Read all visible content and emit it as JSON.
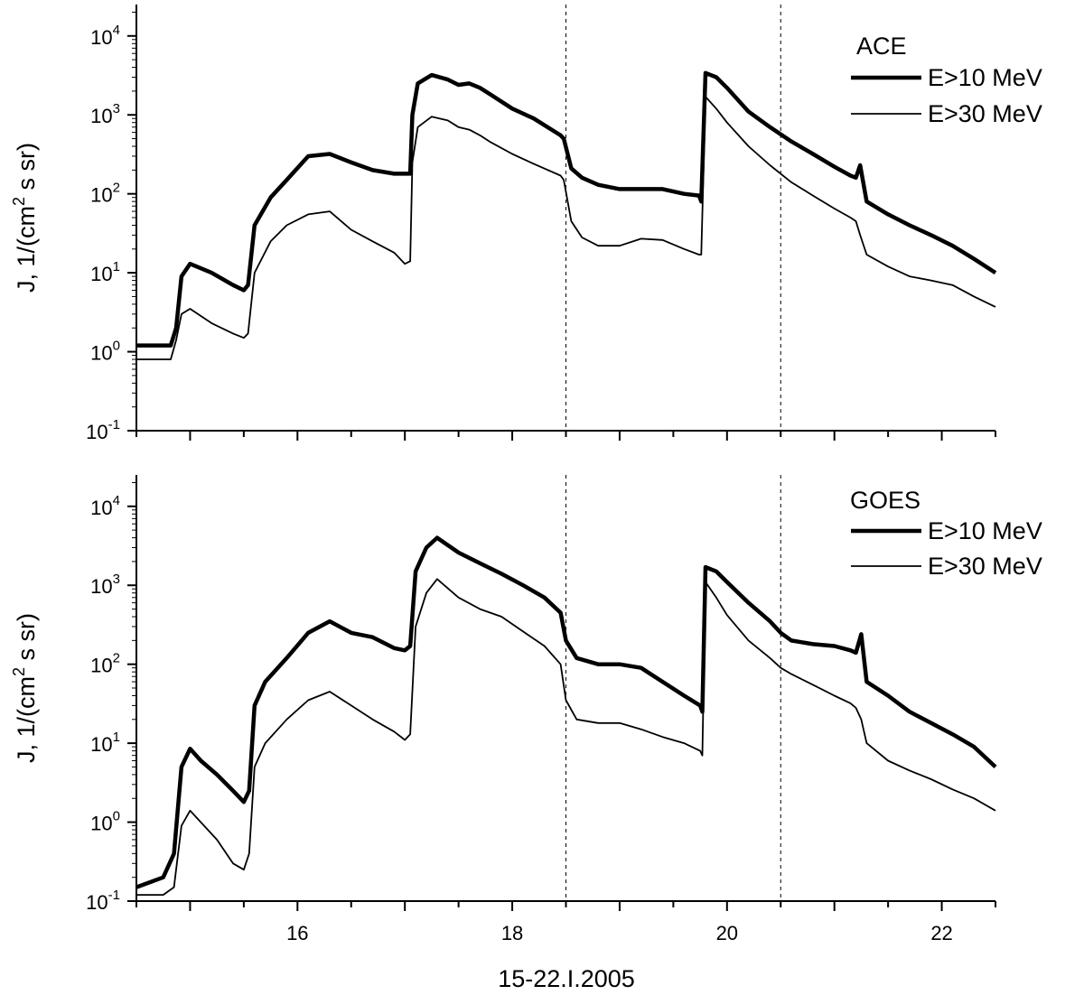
{
  "x_axis_title": "15-22.I.2005",
  "chart_data": [
    {
      "type": "line",
      "panel": "top",
      "title": "",
      "legend_title": "ACE",
      "legend_position": "top-right",
      "xlabel": "15-22.I.2005",
      "ylabel": "J, 1/(cm² s sr)",
      "ylabel_parts": {
        "pre": "J, 1/(cm",
        "sup": "2",
        "post": " s sr)"
      },
      "yscale": "log",
      "xlim": [
        14.5,
        22.5
      ],
      "ylim": [
        0.1,
        25000
      ],
      "x_ticks": [
        16,
        18,
        20,
        22
      ],
      "x_tick_labels": [
        "",
        "",
        "",
        ""
      ],
      "y_ticks": [
        {
          "value": 10000,
          "base": "10",
          "exp": "4"
        },
        {
          "value": 1000,
          "base": "10",
          "exp": "3"
        },
        {
          "value": 100,
          "base": "10",
          "exp": "2"
        },
        {
          "value": 10,
          "base": "10",
          "exp": "1"
        },
        {
          "value": 1,
          "base": "10",
          "exp": "0"
        },
        {
          "value": 0.1,
          "base": "10",
          "exp": "-1"
        }
      ],
      "vertical_lines": [
        18.5,
        20.5
      ],
      "grid": false,
      "series": [
        {
          "name": "E>10 MeV",
          "line_weight": "thick",
          "x": [
            14.5,
            14.82,
            14.87,
            14.92,
            15.0,
            15.2,
            15.4,
            15.5,
            15.54,
            15.6,
            15.75,
            15.9,
            16.1,
            16.3,
            16.5,
            16.7,
            16.9,
            17.0,
            17.05,
            17.07,
            17.12,
            17.25,
            17.4,
            17.5,
            17.6,
            17.7,
            17.8,
            18.0,
            18.2,
            18.45,
            18.48,
            18.55,
            18.65,
            18.8,
            19.0,
            19.2,
            19.4,
            19.6,
            19.74,
            19.76,
            19.8,
            19.9,
            20.0,
            20.2,
            20.4,
            20.6,
            20.8,
            21.0,
            21.15,
            21.2,
            21.24,
            21.3,
            21.5,
            21.7,
            21.9,
            22.1,
            22.3,
            22.5
          ],
          "y": [
            1.2,
            1.2,
            2.0,
            9.0,
            13,
            10,
            7,
            6,
            7,
            40,
            90,
            150,
            300,
            320,
            250,
            200,
            180,
            180,
            180,
            1000,
            2500,
            3200,
            2800,
            2400,
            2500,
            2200,
            1800,
            1200,
            900,
            550,
            500,
            210,
            160,
            130,
            115,
            115,
            115,
            100,
            95,
            80,
            3400,
            3000,
            2200,
            1100,
            700,
            460,
            320,
            220,
            170,
            160,
            230,
            80,
            55,
            40,
            30,
            22,
            15,
            10
          ]
        },
        {
          "name": "E>30 MeV",
          "line_weight": "thin",
          "x": [
            14.5,
            14.82,
            14.87,
            14.92,
            15.0,
            15.2,
            15.4,
            15.5,
            15.54,
            15.6,
            15.75,
            15.9,
            16.1,
            16.3,
            16.5,
            16.7,
            16.9,
            17.0,
            17.05,
            17.07,
            17.12,
            17.25,
            17.4,
            17.5,
            17.6,
            17.7,
            17.8,
            18.0,
            18.2,
            18.45,
            18.48,
            18.55,
            18.65,
            18.8,
            19.0,
            19.2,
            19.4,
            19.6,
            19.74,
            19.76,
            19.8,
            19.9,
            20.0,
            20.2,
            20.4,
            20.6,
            20.8,
            21.0,
            21.15,
            21.2,
            21.24,
            21.3,
            21.5,
            21.7,
            21.9,
            22.1,
            22.3,
            22.5
          ],
          "y": [
            0.8,
            0.8,
            1.4,
            3.0,
            3.5,
            2.3,
            1.7,
            1.5,
            1.7,
            10,
            25,
            40,
            55,
            60,
            35,
            25,
            18,
            13,
            14,
            250,
            700,
            950,
            850,
            700,
            650,
            550,
            450,
            320,
            240,
            170,
            150,
            45,
            28,
            22,
            22,
            27,
            26,
            20,
            17,
            17,
            1700,
            1200,
            800,
            400,
            230,
            140,
            95,
            65,
            50,
            45,
            30,
            17,
            12,
            9,
            8,
            7,
            5,
            3.7
          ]
        }
      ]
    },
    {
      "type": "line",
      "panel": "bottom",
      "title": "",
      "legend_title": "GOES",
      "legend_position": "top-right",
      "xlabel": "15-22.I.2005",
      "ylabel": "J, 1/(cm² s sr)",
      "ylabel_parts": {
        "pre": "J, 1/(cm",
        "sup": "2",
        "post": " s sr)"
      },
      "yscale": "log",
      "xlim": [
        14.5,
        22.5
      ],
      "ylim": [
        0.1,
        25000
      ],
      "x_ticks": [
        16,
        18,
        20,
        22
      ],
      "x_tick_labels": [
        "16",
        "18",
        "20",
        "22"
      ],
      "y_ticks": [
        {
          "value": 10000,
          "base": "10",
          "exp": "4"
        },
        {
          "value": 1000,
          "base": "10",
          "exp": "3"
        },
        {
          "value": 100,
          "base": "10",
          "exp": "2"
        },
        {
          "value": 10,
          "base": "10",
          "exp": "1"
        },
        {
          "value": 1,
          "base": "10",
          "exp": "0"
        },
        {
          "value": 0.1,
          "base": "10",
          "exp": "-1"
        }
      ],
      "vertical_lines": [
        18.5,
        20.5
      ],
      "grid": false,
      "series": [
        {
          "name": "E>10 MeV",
          "line_weight": "thick",
          "x": [
            14.5,
            14.75,
            14.85,
            14.92,
            15.0,
            15.1,
            15.25,
            15.4,
            15.5,
            15.55,
            15.6,
            15.7,
            15.9,
            16.1,
            16.3,
            16.5,
            16.7,
            16.9,
            17.0,
            17.05,
            17.1,
            17.2,
            17.3,
            17.5,
            17.7,
            17.9,
            18.1,
            18.3,
            18.45,
            18.5,
            18.6,
            18.8,
            19.0,
            19.2,
            19.4,
            19.6,
            19.75,
            19.77,
            19.8,
            19.9,
            20.0,
            20.2,
            20.4,
            20.5,
            20.6,
            20.8,
            21.0,
            21.15,
            21.2,
            21.25,
            21.3,
            21.5,
            21.7,
            21.9,
            22.1,
            22.3,
            22.5
          ],
          "y": [
            0.15,
            0.2,
            0.4,
            5.0,
            8.5,
            6.0,
            4.0,
            2.5,
            1.8,
            2.5,
            30,
            60,
            120,
            250,
            350,
            250,
            220,
            160,
            150,
            170,
            1500,
            3000,
            4000,
            2600,
            1900,
            1400,
            1000,
            700,
            450,
            200,
            120,
            100,
            100,
            90,
            60,
            40,
            30,
            25,
            1700,
            1500,
            1100,
            600,
            350,
            250,
            200,
            180,
            170,
            150,
            140,
            240,
            60,
            40,
            25,
            18,
            13,
            9,
            5
          ]
        },
        {
          "name": "E>30 MeV",
          "line_weight": "thin",
          "x": [
            14.5,
            14.75,
            14.85,
            14.92,
            15.0,
            15.1,
            15.25,
            15.4,
            15.5,
            15.55,
            15.6,
            15.7,
            15.9,
            16.1,
            16.3,
            16.5,
            16.7,
            16.9,
            17.0,
            17.05,
            17.1,
            17.2,
            17.3,
            17.5,
            17.7,
            17.9,
            18.1,
            18.3,
            18.45,
            18.5,
            18.6,
            18.8,
            19.0,
            19.2,
            19.4,
            19.6,
            19.75,
            19.77,
            19.8,
            19.9,
            20.0,
            20.2,
            20.4,
            20.5,
            20.6,
            20.8,
            21.0,
            21.15,
            21.2,
            21.25,
            21.3,
            21.5,
            21.7,
            21.9,
            22.1,
            22.3,
            22.5
          ],
          "y": [
            0.12,
            0.12,
            0.15,
            0.9,
            1.4,
            1.0,
            0.6,
            0.3,
            0.25,
            0.4,
            5,
            10,
            20,
            35,
            45,
            30,
            20,
            14,
            11,
            13,
            300,
            800,
            1200,
            700,
            500,
            400,
            260,
            170,
            100,
            35,
            20,
            18,
            18,
            15,
            12,
            10,
            8,
            7,
            1100,
            700,
            420,
            200,
            120,
            90,
            75,
            55,
            40,
            32,
            28,
            20,
            10,
            6,
            4.5,
            3.5,
            2.6,
            2.0,
            1.4
          ]
        }
      ]
    }
  ]
}
